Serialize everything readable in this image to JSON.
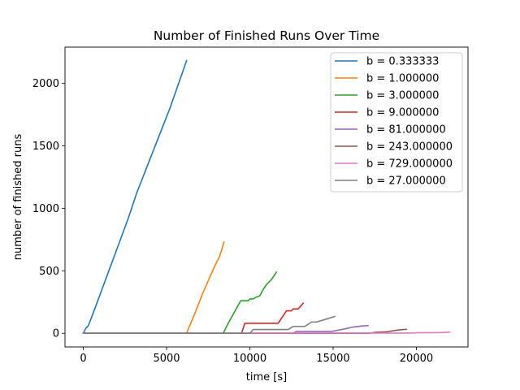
{
  "chart_data": {
    "type": "line",
    "title": "Number of Finished Runs Over Time",
    "xlabel": "time [s]",
    "ylabel": "number of finished runs",
    "xlim": [
      -1100,
      23100
    ],
    "ylim": [
      -109,
      2289
    ],
    "xticks": [
      0,
      5000,
      10000,
      15000,
      20000
    ],
    "yticks": [
      0,
      500,
      1000,
      1500,
      2000
    ],
    "grid": false,
    "legend_position": "top-right",
    "series": [
      {
        "name": "b = 0.333333",
        "color": "#1f77b4",
        "points": [
          [
            0,
            0
          ],
          [
            150,
            40
          ],
          [
            300,
            60
          ],
          [
            700,
            200
          ],
          [
            1200,
            380
          ],
          [
            1700,
            560
          ],
          [
            2200,
            740
          ],
          [
            2700,
            920
          ],
          [
            3200,
            1120
          ],
          [
            3700,
            1290
          ],
          [
            4200,
            1460
          ],
          [
            4700,
            1630
          ],
          [
            5200,
            1800
          ],
          [
            5700,
            1990
          ],
          [
            6200,
            2180
          ]
        ]
      },
      {
        "name": "b = 1.000000",
        "color": "#ff7f0e",
        "points": [
          [
            0,
            0
          ],
          [
            6200,
            0
          ],
          [
            6700,
            160
          ],
          [
            7200,
            330
          ],
          [
            7700,
            480
          ],
          [
            7900,
            540
          ],
          [
            8200,
            620
          ],
          [
            8450,
            730
          ]
        ]
      },
      {
        "name": "b = 3.000000",
        "color": "#2ca02c",
        "points": [
          [
            0,
            0
          ],
          [
            8400,
            0
          ],
          [
            8700,
            80
          ],
          [
            9200,
            200
          ],
          [
            9450,
            260
          ],
          [
            9900,
            260
          ],
          [
            10000,
            275
          ],
          [
            10200,
            275
          ],
          [
            10400,
            290
          ],
          [
            10600,
            300
          ],
          [
            10800,
            350
          ],
          [
            11000,
            390
          ],
          [
            11300,
            430
          ],
          [
            11600,
            490
          ]
        ]
      },
      {
        "name": "b = 9.000000",
        "color": "#d62728",
        "points": [
          [
            0,
            0
          ],
          [
            9500,
            0
          ],
          [
            9700,
            80
          ],
          [
            11700,
            80
          ],
          [
            12200,
            180
          ],
          [
            12500,
            180
          ],
          [
            12600,
            195
          ],
          [
            12900,
            195
          ],
          [
            13200,
            240
          ]
        ]
      },
      {
        "name": "b = 81.000000",
        "color": "#9467bd",
        "points": [
          [
            0,
            0
          ],
          [
            12600,
            0
          ],
          [
            12800,
            15
          ],
          [
            14900,
            15
          ],
          [
            15300,
            25
          ],
          [
            15700,
            35
          ],
          [
            16200,
            50
          ],
          [
            16700,
            58
          ],
          [
            17100,
            62
          ]
        ]
      },
      {
        "name": "b = 243.000000",
        "color": "#8c564b",
        "points": [
          [
            0,
            0
          ],
          [
            15000,
            0
          ],
          [
            17200,
            0
          ],
          [
            17500,
            8
          ],
          [
            18200,
            12
          ],
          [
            18700,
            22
          ],
          [
            19000,
            28
          ],
          [
            19400,
            32
          ]
        ]
      },
      {
        "name": "b = 729.000000",
        "color": "#e377c2",
        "points": [
          [
            0,
            0
          ],
          [
            9800,
            0
          ],
          [
            10000,
            2
          ],
          [
            19500,
            2
          ],
          [
            20000,
            4
          ],
          [
            21000,
            5
          ],
          [
            21500,
            6
          ],
          [
            22000,
            10
          ]
        ]
      },
      {
        "name": "b = 27.000000",
        "color": "#7f7f7f",
        "points": [
          [
            0,
            0
          ],
          [
            10000,
            0
          ],
          [
            10200,
            30
          ],
          [
            12300,
            30
          ],
          [
            12600,
            55
          ],
          [
            13300,
            55
          ],
          [
            13700,
            90
          ],
          [
            14000,
            90
          ],
          [
            14500,
            110
          ],
          [
            15100,
            135
          ]
        ]
      }
    ]
  }
}
